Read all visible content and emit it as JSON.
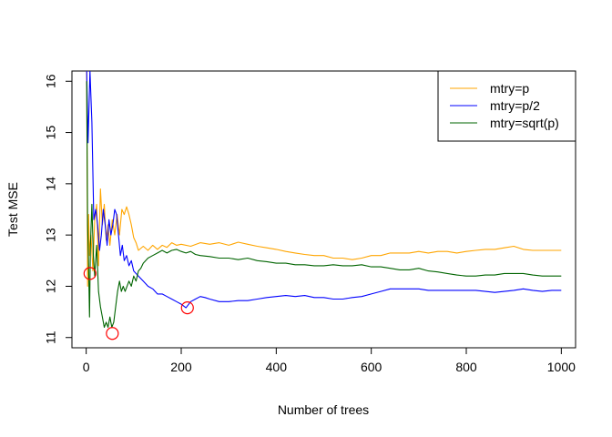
{
  "chart_data": {
    "type": "line",
    "title": "",
    "xlabel": "Number of trees",
    "ylabel": "Test MSE",
    "xlim": [
      -30,
      1030
    ],
    "ylim": [
      10.8,
      16.2
    ],
    "xticks": [
      0,
      200,
      400,
      600,
      800,
      1000
    ],
    "yticks": [
      11,
      12,
      13,
      14,
      15,
      16
    ],
    "grid": false,
    "legend": "top-right",
    "series": [
      {
        "name": "mtry=p",
        "color": "#FFA500",
        "points": [
          [
            1,
            16.2
          ],
          [
            3,
            12.0
          ],
          [
            5,
            13.4
          ],
          [
            7,
            12.6
          ],
          [
            10,
            13.0
          ],
          [
            14,
            12.3
          ],
          [
            18,
            13.3
          ],
          [
            22,
            13.6
          ],
          [
            26,
            12.4
          ],
          [
            30,
            13.9
          ],
          [
            34,
            13.2
          ],
          [
            38,
            13.6
          ],
          [
            42,
            12.9
          ],
          [
            46,
            13.2
          ],
          [
            50,
            12.8
          ],
          [
            55,
            13.3
          ],
          [
            60,
            13.0
          ],
          [
            65,
            13.4
          ],
          [
            70,
            13.0
          ],
          [
            75,
            13.5
          ],
          [
            80,
            13.4
          ],
          [
            85,
            13.55
          ],
          [
            90,
            13.4
          ],
          [
            95,
            13.2
          ],
          [
            100,
            12.95
          ],
          [
            105,
            12.85
          ],
          [
            110,
            12.7
          ],
          [
            120,
            12.78
          ],
          [
            130,
            12.7
          ],
          [
            140,
            12.8
          ],
          [
            150,
            12.72
          ],
          [
            160,
            12.8
          ],
          [
            170,
            12.76
          ],
          [
            180,
            12.85
          ],
          [
            190,
            12.8
          ],
          [
            200,
            12.82
          ],
          [
            220,
            12.78
          ],
          [
            240,
            12.85
          ],
          [
            260,
            12.82
          ],
          [
            280,
            12.85
          ],
          [
            300,
            12.8
          ],
          [
            320,
            12.86
          ],
          [
            340,
            12.82
          ],
          [
            360,
            12.78
          ],
          [
            380,
            12.75
          ],
          [
            400,
            12.72
          ],
          [
            420,
            12.68
          ],
          [
            440,
            12.65
          ],
          [
            460,
            12.62
          ],
          [
            480,
            12.6
          ],
          [
            500,
            12.6
          ],
          [
            520,
            12.55
          ],
          [
            540,
            12.55
          ],
          [
            560,
            12.52
          ],
          [
            580,
            12.55
          ],
          [
            600,
            12.6
          ],
          [
            620,
            12.6
          ],
          [
            640,
            12.65
          ],
          [
            660,
            12.65
          ],
          [
            680,
            12.65
          ],
          [
            700,
            12.68
          ],
          [
            720,
            12.65
          ],
          [
            740,
            12.68
          ],
          [
            760,
            12.68
          ],
          [
            780,
            12.65
          ],
          [
            800,
            12.68
          ],
          [
            820,
            12.7
          ],
          [
            840,
            12.72
          ],
          [
            860,
            12.72
          ],
          [
            880,
            12.75
          ],
          [
            900,
            12.78
          ],
          [
            920,
            12.72
          ],
          [
            940,
            12.7
          ],
          [
            960,
            12.7
          ],
          [
            980,
            12.7
          ],
          [
            1000,
            12.7
          ]
        ]
      },
      {
        "name": "mtry=p/2",
        "color": "#0000FF",
        "points": [
          [
            1,
            16.2
          ],
          [
            4,
            14.8
          ],
          [
            8,
            16.2
          ],
          [
            12,
            15.2
          ],
          [
            16,
            13.3
          ],
          [
            20,
            13.5
          ],
          [
            24,
            13.2
          ],
          [
            28,
            12.7
          ],
          [
            32,
            13.0
          ],
          [
            36,
            13.5
          ],
          [
            40,
            13.2
          ],
          [
            44,
            12.8
          ],
          [
            48,
            13.3
          ],
          [
            52,
            13.0
          ],
          [
            56,
            13.2
          ],
          [
            60,
            13.5
          ],
          [
            64,
            13.4
          ],
          [
            68,
            13.0
          ],
          [
            72,
            12.6
          ],
          [
            76,
            12.8
          ],
          [
            80,
            12.5
          ],
          [
            85,
            12.6
          ],
          [
            90,
            12.4
          ],
          [
            95,
            12.5
          ],
          [
            100,
            12.3
          ],
          [
            110,
            12.2
          ],
          [
            120,
            12.1
          ],
          [
            130,
            12.0
          ],
          [
            140,
            11.95
          ],
          [
            150,
            11.85
          ],
          [
            160,
            11.85
          ],
          [
            170,
            11.8
          ],
          [
            180,
            11.75
          ],
          [
            190,
            11.7
          ],
          [
            200,
            11.65
          ],
          [
            210,
            11.58
          ],
          [
            220,
            11.7
          ],
          [
            230,
            11.75
          ],
          [
            240,
            11.8
          ],
          [
            250,
            11.78
          ],
          [
            260,
            11.75
          ],
          [
            280,
            11.7
          ],
          [
            300,
            11.7
          ],
          [
            320,
            11.72
          ],
          [
            340,
            11.72
          ],
          [
            360,
            11.75
          ],
          [
            380,
            11.78
          ],
          [
            400,
            11.8
          ],
          [
            420,
            11.82
          ],
          [
            440,
            11.8
          ],
          [
            460,
            11.82
          ],
          [
            480,
            11.78
          ],
          [
            500,
            11.78
          ],
          [
            520,
            11.75
          ],
          [
            540,
            11.75
          ],
          [
            560,
            11.78
          ],
          [
            580,
            11.8
          ],
          [
            600,
            11.85
          ],
          [
            620,
            11.9
          ],
          [
            640,
            11.95
          ],
          [
            660,
            11.95
          ],
          [
            680,
            11.95
          ],
          [
            700,
            11.95
          ],
          [
            720,
            11.92
          ],
          [
            740,
            11.92
          ],
          [
            760,
            11.92
          ],
          [
            780,
            11.92
          ],
          [
            800,
            11.92
          ],
          [
            820,
            11.92
          ],
          [
            840,
            11.9
          ],
          [
            860,
            11.88
          ],
          [
            880,
            11.9
          ],
          [
            900,
            11.92
          ],
          [
            920,
            11.95
          ],
          [
            940,
            11.92
          ],
          [
            960,
            11.9
          ],
          [
            980,
            11.92
          ],
          [
            1000,
            11.92
          ]
        ]
      },
      {
        "name": "mtry=sqrt(p)",
        "color": "#006400",
        "points": [
          [
            1,
            16.0
          ],
          [
            3,
            13.2
          ],
          [
            5,
            12.4
          ],
          [
            7,
            11.4
          ],
          [
            9,
            12.8
          ],
          [
            12,
            13.6
          ],
          [
            15,
            12.6
          ],
          [
            18,
            12.2
          ],
          [
            22,
            12.8
          ],
          [
            26,
            11.9
          ],
          [
            30,
            11.6
          ],
          [
            34,
            11.4
          ],
          [
            38,
            11.2
          ],
          [
            42,
            11.3
          ],
          [
            46,
            11.2
          ],
          [
            50,
            11.4
          ],
          [
            54,
            11.2
          ],
          [
            58,
            11.3
          ],
          [
            62,
            11.6
          ],
          [
            66,
            11.9
          ],
          [
            70,
            12.1
          ],
          [
            74,
            11.9
          ],
          [
            78,
            12.0
          ],
          [
            82,
            11.9
          ],
          [
            86,
            12.0
          ],
          [
            90,
            12.1
          ],
          [
            95,
            12.0
          ],
          [
            100,
            12.2
          ],
          [
            105,
            12.1
          ],
          [
            110,
            12.3
          ],
          [
            115,
            12.35
          ],
          [
            120,
            12.45
          ],
          [
            130,
            12.55
          ],
          [
            140,
            12.6
          ],
          [
            150,
            12.65
          ],
          [
            160,
            12.7
          ],
          [
            170,
            12.65
          ],
          [
            180,
            12.7
          ],
          [
            190,
            12.72
          ],
          [
            200,
            12.68
          ],
          [
            210,
            12.65
          ],
          [
            220,
            12.68
          ],
          [
            230,
            12.62
          ],
          [
            240,
            12.6
          ],
          [
            260,
            12.58
          ],
          [
            280,
            12.55
          ],
          [
            300,
            12.55
          ],
          [
            320,
            12.52
          ],
          [
            340,
            12.55
          ],
          [
            360,
            12.5
          ],
          [
            380,
            12.48
          ],
          [
            400,
            12.45
          ],
          [
            420,
            12.45
          ],
          [
            440,
            12.42
          ],
          [
            460,
            12.42
          ],
          [
            480,
            12.4
          ],
          [
            500,
            12.4
          ],
          [
            520,
            12.42
          ],
          [
            540,
            12.4
          ],
          [
            560,
            12.4
          ],
          [
            580,
            12.42
          ],
          [
            600,
            12.38
          ],
          [
            620,
            12.38
          ],
          [
            640,
            12.35
          ],
          [
            660,
            12.32
          ],
          [
            680,
            12.32
          ],
          [
            700,
            12.35
          ],
          [
            720,
            12.3
          ],
          [
            740,
            12.28
          ],
          [
            760,
            12.25
          ],
          [
            780,
            12.22
          ],
          [
            800,
            12.2
          ],
          [
            820,
            12.2
          ],
          [
            840,
            12.22
          ],
          [
            860,
            12.22
          ],
          [
            880,
            12.25
          ],
          [
            900,
            12.25
          ],
          [
            920,
            12.25
          ],
          [
            940,
            12.22
          ],
          [
            960,
            12.2
          ],
          [
            980,
            12.2
          ],
          [
            1000,
            12.2
          ]
        ]
      }
    ],
    "markers": [
      {
        "x": 8,
        "y": 12.25,
        "color": "#FF0000"
      },
      {
        "x": 55,
        "y": 11.08,
        "color": "#FF0000"
      },
      {
        "x": 213,
        "y": 11.58,
        "color": "#FF0000"
      }
    ]
  }
}
